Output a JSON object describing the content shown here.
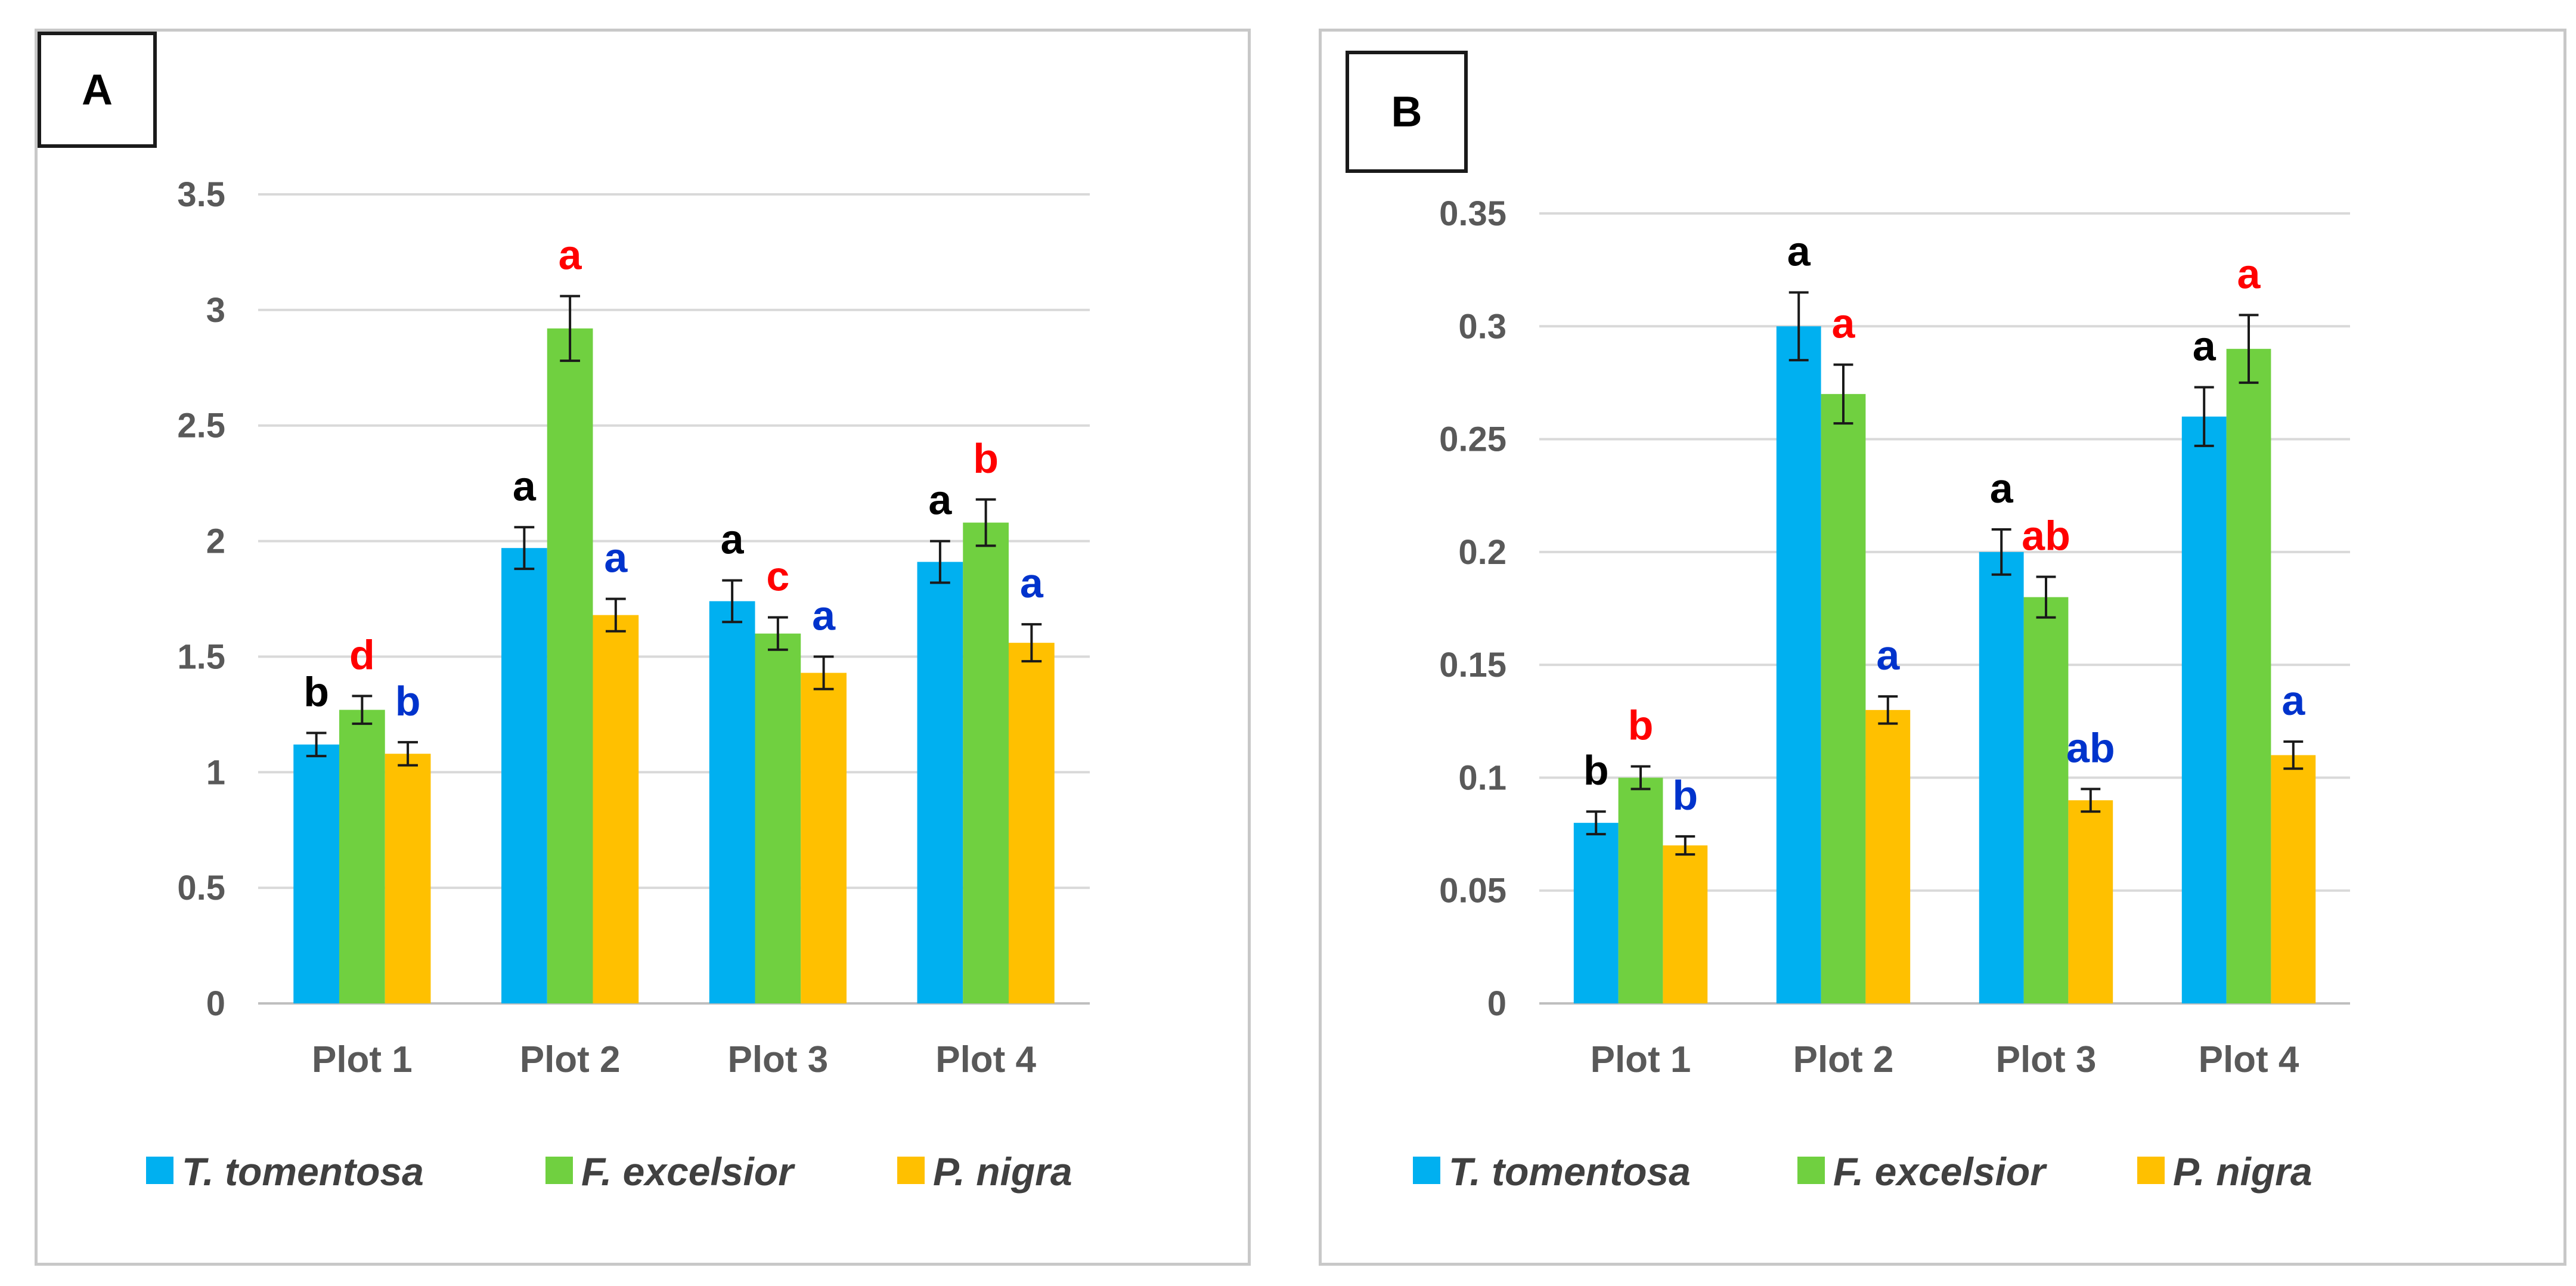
{
  "chart_data": [
    {
      "type": "bar",
      "panel_label": "A",
      "categories": [
        "Plot 1",
        "Plot 2",
        "Plot 3",
        "Plot 4"
      ],
      "ylim": [
        0,
        3.5
      ],
      "y_ticks": [
        "0",
        "0.5",
        "1",
        "1.5",
        "2",
        "2.5",
        "3",
        "3.5"
      ],
      "y_tick_values": [
        0,
        0.5,
        1,
        1.5,
        2,
        2.5,
        3,
        3.5
      ],
      "grid": true,
      "legend_position": "bottom",
      "series": [
        {
          "name": "T. tomentosa",
          "color": "#00B0F0",
          "letter_color": "#000000",
          "values": [
            1.12,
            1.97,
            1.74,
            1.91
          ],
          "errors": [
            0.05,
            0.09,
            0.09,
            0.09
          ],
          "letters": [
            "b",
            "a",
            "a",
            "a"
          ]
        },
        {
          "name": "F. excelsior",
          "color": "#70D040",
          "letter_color": "#FF0000",
          "values": [
            1.27,
            2.92,
            1.6,
            2.08
          ],
          "errors": [
            0.06,
            0.14,
            0.07,
            0.1
          ],
          "letters": [
            "d",
            "a",
            "c",
            "b"
          ]
        },
        {
          "name": "P. nigra",
          "color": "#FFC000",
          "letter_color": "#0033CC",
          "values": [
            1.08,
            1.68,
            1.43,
            1.56
          ],
          "errors": [
            0.05,
            0.07,
            0.07,
            0.08
          ],
          "letters": [
            "b",
            "a",
            "a",
            "a"
          ]
        }
      ]
    },
    {
      "type": "bar",
      "panel_label": "B",
      "categories": [
        "Plot 1",
        "Plot 2",
        "Plot 3",
        "Plot 4"
      ],
      "ylim": [
        0,
        0.35
      ],
      "y_ticks": [
        "0",
        "0.05",
        "0.1",
        "0.15",
        "0.2",
        "0.25",
        "0.3",
        "0.35"
      ],
      "y_tick_values": [
        0,
        0.05,
        0.1,
        0.15,
        0.2,
        0.25,
        0.3,
        0.35
      ],
      "grid": true,
      "legend_position": "bottom",
      "series": [
        {
          "name": "T. tomentosa",
          "color": "#00B0F0",
          "letter_color": "#000000",
          "values": [
            0.08,
            0.3,
            0.2,
            0.26
          ],
          "errors": [
            0.005,
            0.015,
            0.01,
            0.013
          ],
          "letters": [
            "b",
            "a",
            "a",
            "a"
          ]
        },
        {
          "name": "F. excelsior",
          "color": "#70D040",
          "letter_color": "#FF0000",
          "values": [
            0.1,
            0.27,
            0.18,
            0.29
          ],
          "errors": [
            0.005,
            0.013,
            0.009,
            0.015
          ],
          "letters": [
            "b",
            "a",
            "ab",
            "a"
          ]
        },
        {
          "name": "P. nigra",
          "color": "#FFC000",
          "letter_color": "#0033CC",
          "values": [
            0.07,
            0.13,
            0.09,
            0.11
          ],
          "errors": [
            0.004,
            0.006,
            0.005,
            0.006
          ],
          "letters": [
            "b",
            "a",
            "ab",
            "a"
          ]
        }
      ]
    }
  ]
}
